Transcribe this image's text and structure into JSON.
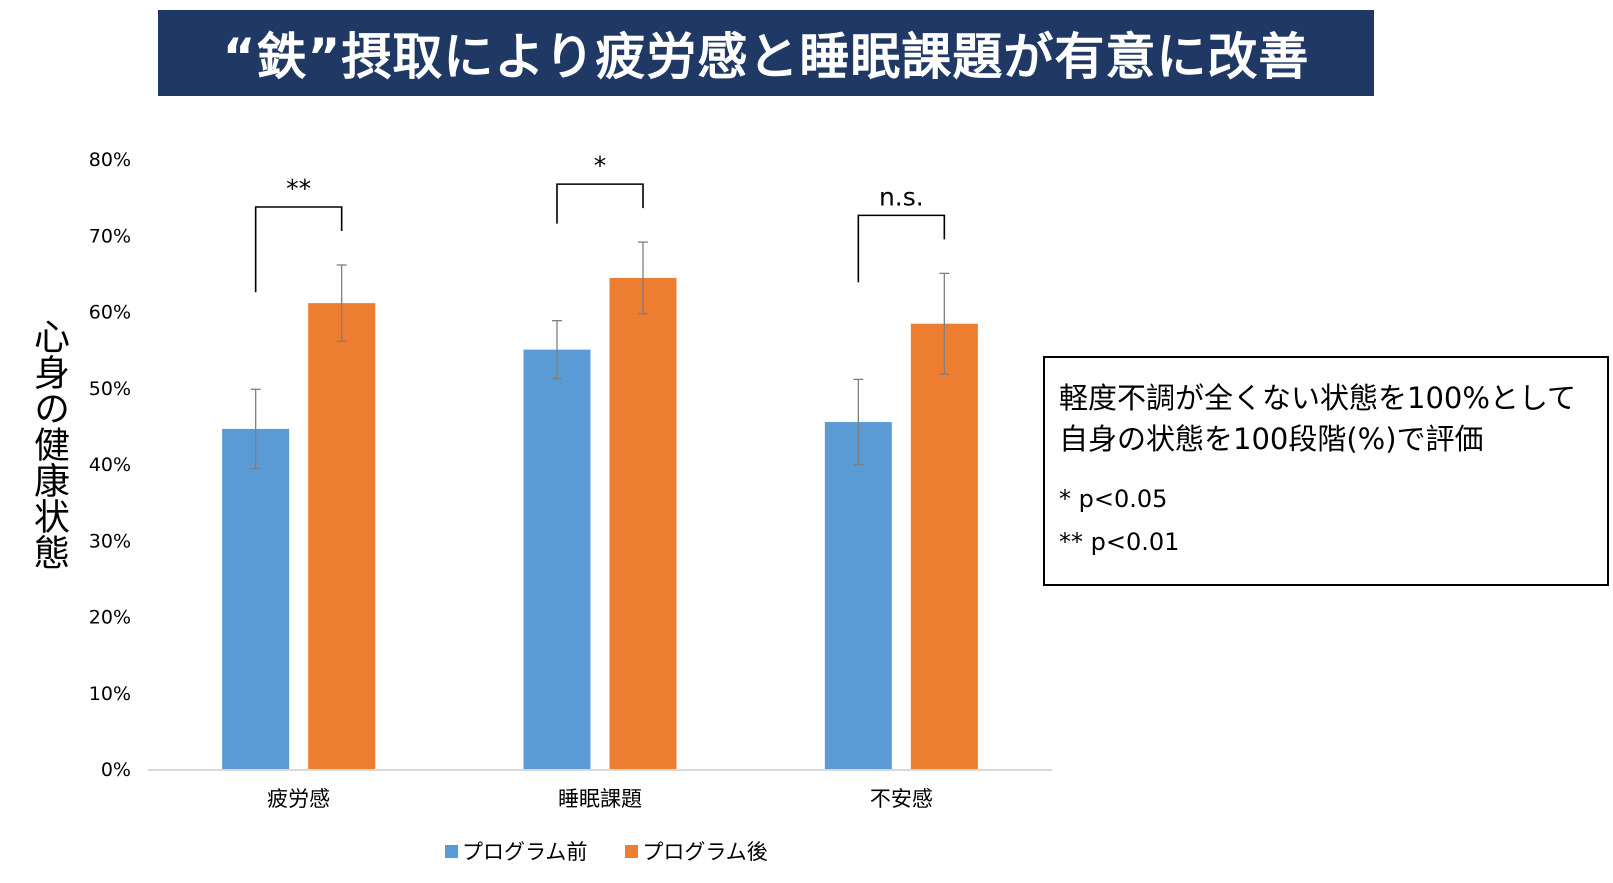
{
  "title": "“鉄”摂取により疲労感と睡眠課題が有意に改善",
  "chart_data": {
    "type": "bar",
    "ylabel": "心身の健康状態",
    "ylim": [
      0,
      80
    ],
    "yticks": [
      "0%",
      "10%",
      "20%",
      "30%",
      "40%",
      "50%",
      "60%",
      "70%",
      "80%"
    ],
    "categories": [
      "疲労感",
      "睡眠課題",
      "不安感"
    ],
    "series": [
      {
        "name": "プログラム前",
        "color": "#5b9bd5",
        "values": [
          44.6,
          55.0,
          45.5
        ],
        "error": [
          5.2,
          3.8,
          5.6
        ]
      },
      {
        "name": "プログラム後",
        "color": "#ed7d31",
        "values": [
          61.1,
          64.4,
          58.4
        ],
        "error": [
          5.0,
          4.7,
          6.6
        ]
      }
    ],
    "significance": [
      "**",
      "*",
      "n.s."
    ],
    "grid": false,
    "legend": "bottom"
  },
  "note": {
    "lines": [
      "軽度不調が全くない状態を100%として",
      "自身の状態を100段階(%)で評価"
    ],
    "sig_lines": [
      "* p<0.05",
      "** p<0.01"
    ]
  }
}
